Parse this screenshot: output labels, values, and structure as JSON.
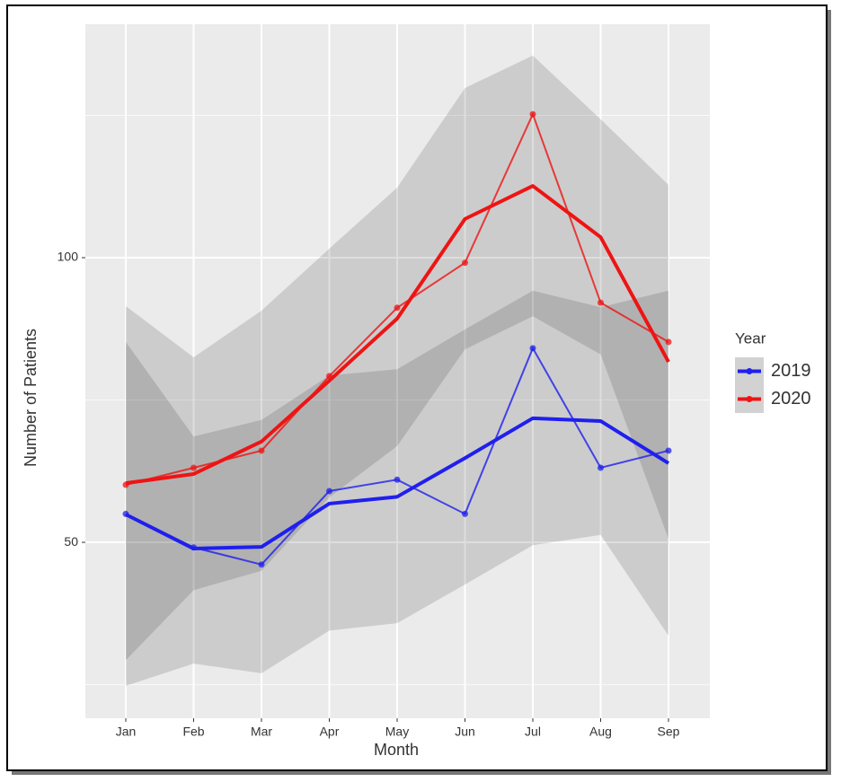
{
  "chart_data": {
    "type": "line",
    "x_label": "Month",
    "y_label": "Number of Patients",
    "legend_title": "Year",
    "categories": [
      "Jan",
      "Feb",
      "Mar",
      "Apr",
      "May",
      "Jun",
      "Jul",
      "Aug",
      "Sep"
    ],
    "ylim": [
      19.1,
      141
    ],
    "yticks": [
      50,
      100
    ],
    "yminorticks": [
      25,
      75,
      125
    ],
    "grid": true,
    "legend": "right",
    "series": [
      {
        "name": "2019",
        "color": "#1f1fee",
        "values": [
          55.0,
          49.1,
          46.1,
          59.0,
          61.0,
          55.0,
          84.1,
          63.1,
          66.1
        ],
        "smooth": [
          54.9,
          48.9,
          49.2,
          56.8,
          58.0,
          64.8,
          71.8,
          71.3,
          63.9
        ],
        "upper": [
          85.2,
          68.6,
          71.5,
          79.3,
          80.4,
          87.4,
          94.2,
          91.3,
          94.2
        ],
        "lower": [
          24.8,
          28.7,
          27.0,
          34.5,
          35.8,
          42.6,
          49.5,
          51.3,
          33.6
        ]
      },
      {
        "name": "2020",
        "color": "#ee1414",
        "values": [
          60.1,
          63.1,
          66.1,
          79.2,
          91.2,
          99.1,
          125.2,
          92.1,
          85.2
        ],
        "smooth": [
          60.4,
          62.0,
          67.7,
          78.4,
          89.3,
          106.8,
          112.6,
          103.6,
          81.7
        ],
        "upper": [
          91.5,
          82.5,
          90.7,
          101.6,
          112.3,
          129.8,
          135.5,
          124.3,
          112.8
        ],
        "lower": [
          29.3,
          41.6,
          45.0,
          57.9,
          66.9,
          83.9,
          89.7,
          83.0,
          50.6
        ]
      }
    ]
  }
}
